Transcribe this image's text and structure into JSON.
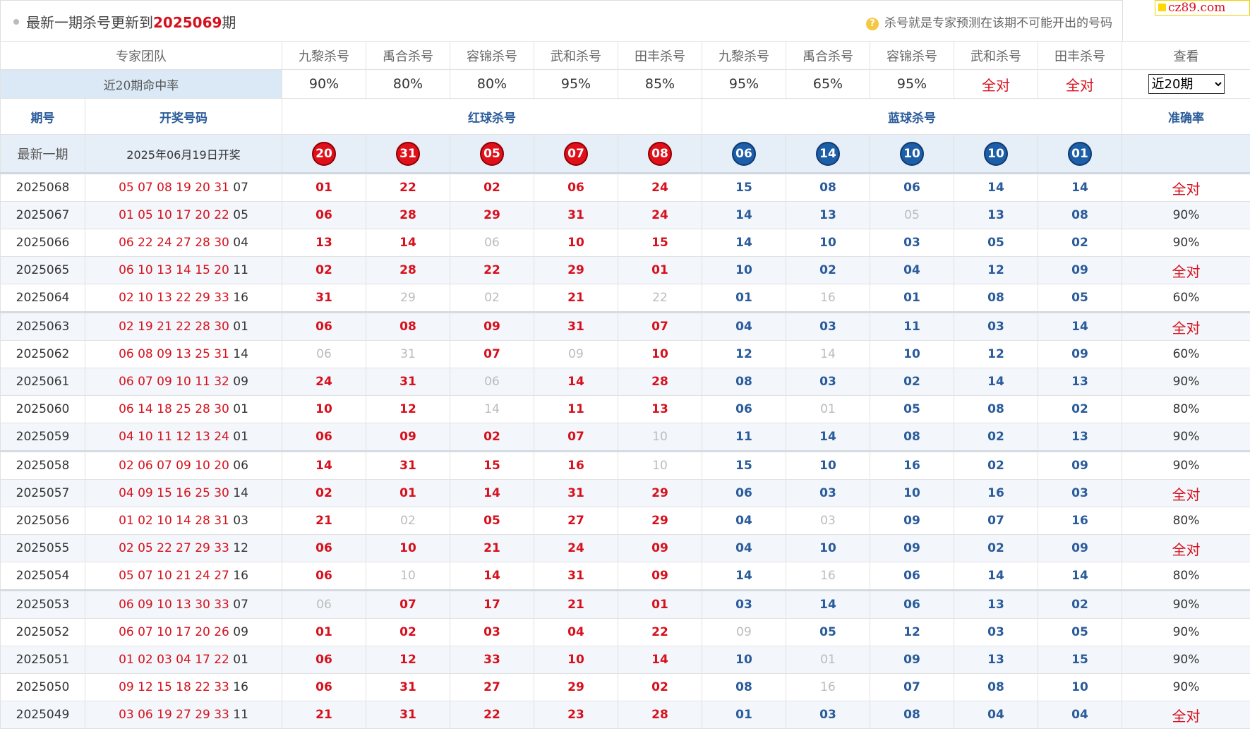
{
  "header": {
    "title_prefix": "最新一期杀号更新到",
    "title_issue": "2025069",
    "title_suffix": "期",
    "tip_icon": "question-icon",
    "tip": "杀号就是专家预测在该期不可能开出的号码"
  },
  "logo": {
    "text": "cz89.com"
  },
  "table": {
    "team_label": "专家团队",
    "experts_red": [
      "九黎杀号",
      "禹合杀号",
      "容锦杀号",
      "武和杀号",
      "田丰杀号"
    ],
    "experts_blue": [
      "九黎杀号",
      "禹合杀号",
      "容锦杀号",
      "武和杀号",
      "田丰杀号"
    ],
    "view_label": "查看",
    "rate_label": "近20期命中率",
    "rates": [
      "90%",
      "80%",
      "80%",
      "95%",
      "85%",
      "95%",
      "65%",
      "95%",
      "全对",
      "全对"
    ],
    "select_value": "近20期",
    "col_issue": "期号",
    "col_draw": "开奖号码",
    "col_red": "红球杀号",
    "col_blue": "蓝球杀号",
    "col_acc": "准确率",
    "latest_label": "最新一期",
    "latest_date": "2025年06月19日开奖",
    "latest_red": [
      "20",
      "31",
      "05",
      "07",
      "08"
    ],
    "latest_blue": [
      "06",
      "14",
      "10",
      "10",
      "01"
    ],
    "rows": [
      {
        "issue": "2025068",
        "reds": "05 07 08 19 20 31",
        "blue": "07",
        "kr": [
          "01",
          "22",
          "02",
          "06",
          "24"
        ],
        "kb": [
          "15",
          "08",
          "06",
          "14",
          "14"
        ],
        "miss": [],
        "acc": "全对"
      },
      {
        "issue": "2025067",
        "reds": "01 05 10 17 20 22",
        "blue": "05",
        "kr": [
          "06",
          "28",
          "29",
          "31",
          "24"
        ],
        "kb": [
          "14",
          "13",
          "05",
          "13",
          "08"
        ],
        "miss": [
          7
        ],
        "acc": "90%"
      },
      {
        "issue": "2025066",
        "reds": "06 22 24 27 28 30",
        "blue": "04",
        "kr": [
          "13",
          "14",
          "06",
          "10",
          "15"
        ],
        "kb": [
          "14",
          "10",
          "03",
          "05",
          "02"
        ],
        "miss": [
          2
        ],
        "acc": "90%"
      },
      {
        "issue": "2025065",
        "reds": "06 10 13 14 15 20",
        "blue": "11",
        "kr": [
          "02",
          "28",
          "22",
          "29",
          "01"
        ],
        "kb": [
          "10",
          "02",
          "04",
          "12",
          "09"
        ],
        "miss": [],
        "acc": "全对"
      },
      {
        "issue": "2025064",
        "reds": "02 10 13 22 29 33",
        "blue": "16",
        "kr": [
          "31",
          "29",
          "02",
          "21",
          "22"
        ],
        "kb": [
          "01",
          "16",
          "01",
          "08",
          "05"
        ],
        "miss": [
          1,
          2,
          4,
          6
        ],
        "acc": "60%"
      },
      {
        "issue": "2025063",
        "reds": "02 19 21 22 28 30",
        "blue": "01",
        "kr": [
          "06",
          "08",
          "09",
          "31",
          "07"
        ],
        "kb": [
          "04",
          "03",
          "11",
          "03",
          "14"
        ],
        "miss": [],
        "acc": "全对"
      },
      {
        "issue": "2025062",
        "reds": "06 08 09 13 25 31",
        "blue": "14",
        "kr": [
          "06",
          "31",
          "07",
          "09",
          "10"
        ],
        "kb": [
          "12",
          "14",
          "10",
          "12",
          "09"
        ],
        "miss": [
          0,
          1,
          3,
          6
        ],
        "acc": "60%"
      },
      {
        "issue": "2025061",
        "reds": "06 07 09 10 11 32",
        "blue": "09",
        "kr": [
          "24",
          "31",
          "06",
          "14",
          "28"
        ],
        "kb": [
          "08",
          "03",
          "02",
          "14",
          "13"
        ],
        "miss": [
          2
        ],
        "acc": "90%"
      },
      {
        "issue": "2025060",
        "reds": "06 14 18 25 28 30",
        "blue": "01",
        "kr": [
          "10",
          "12",
          "14",
          "11",
          "13"
        ],
        "kb": [
          "06",
          "01",
          "05",
          "08",
          "02"
        ],
        "miss": [
          2,
          6
        ],
        "acc": "80%"
      },
      {
        "issue": "2025059",
        "reds": "04 10 11 12 13 24",
        "blue": "01",
        "kr": [
          "06",
          "09",
          "02",
          "07",
          "10"
        ],
        "kb": [
          "11",
          "14",
          "08",
          "02",
          "13"
        ],
        "miss": [
          4
        ],
        "acc": "90%"
      },
      {
        "issue": "2025058",
        "reds": "02 06 07 09 10 20",
        "blue": "06",
        "kr": [
          "14",
          "31",
          "15",
          "16",
          "10"
        ],
        "kb": [
          "15",
          "10",
          "16",
          "02",
          "09"
        ],
        "miss": [
          4
        ],
        "acc": "90%"
      },
      {
        "issue": "2025057",
        "reds": "04 09 15 16 25 30",
        "blue": "14",
        "kr": [
          "02",
          "01",
          "14",
          "31",
          "29"
        ],
        "kb": [
          "06",
          "03",
          "10",
          "16",
          "03"
        ],
        "miss": [],
        "acc": "全对"
      },
      {
        "issue": "2025056",
        "reds": "01 02 10 14 28 31",
        "blue": "03",
        "kr": [
          "21",
          "02",
          "05",
          "27",
          "29"
        ],
        "kb": [
          "04",
          "03",
          "09",
          "07",
          "16"
        ],
        "miss": [
          1,
          6
        ],
        "acc": "80%"
      },
      {
        "issue": "2025055",
        "reds": "02 05 22 27 29 33",
        "blue": "12",
        "kr": [
          "06",
          "10",
          "21",
          "24",
          "09"
        ],
        "kb": [
          "04",
          "10",
          "09",
          "02",
          "09"
        ],
        "miss": [],
        "acc": "全对"
      },
      {
        "issue": "2025054",
        "reds": "05 07 10 21 24 27",
        "blue": "16",
        "kr": [
          "06",
          "10",
          "14",
          "31",
          "09"
        ],
        "kb": [
          "14",
          "16",
          "06",
          "14",
          "14"
        ],
        "miss": [
          1,
          6
        ],
        "acc": "80%"
      },
      {
        "issue": "2025053",
        "reds": "06 09 10 13 30 33",
        "blue": "07",
        "kr": [
          "06",
          "07",
          "17",
          "21",
          "01"
        ],
        "kb": [
          "03",
          "14",
          "06",
          "13",
          "02"
        ],
        "miss": [
          0
        ],
        "acc": "90%"
      },
      {
        "issue": "2025052",
        "reds": "06 07 10 17 20 26",
        "blue": "09",
        "kr": [
          "01",
          "02",
          "03",
          "04",
          "22"
        ],
        "kb": [
          "09",
          "05",
          "12",
          "03",
          "05"
        ],
        "miss": [
          5
        ],
        "acc": "90%"
      },
      {
        "issue": "2025051",
        "reds": "01 02 03 04 17 22",
        "blue": "01",
        "kr": [
          "06",
          "12",
          "33",
          "10",
          "14"
        ],
        "kb": [
          "10",
          "01",
          "09",
          "13",
          "15"
        ],
        "miss": [
          6
        ],
        "acc": "90%"
      },
      {
        "issue": "2025050",
        "reds": "09 12 15 18 22 33",
        "blue": "16",
        "kr": [
          "06",
          "31",
          "27",
          "29",
          "02"
        ],
        "kb": [
          "08",
          "16",
          "07",
          "08",
          "10"
        ],
        "miss": [
          6
        ],
        "acc": "90%"
      },
      {
        "issue": "2025049",
        "reds": "03 06 19 27 29 33",
        "blue": "11",
        "kr": [
          "21",
          "31",
          "22",
          "23",
          "28"
        ],
        "kb": [
          "01",
          "03",
          "08",
          "04",
          "04"
        ],
        "miss": [],
        "acc": "全对"
      }
    ]
  }
}
